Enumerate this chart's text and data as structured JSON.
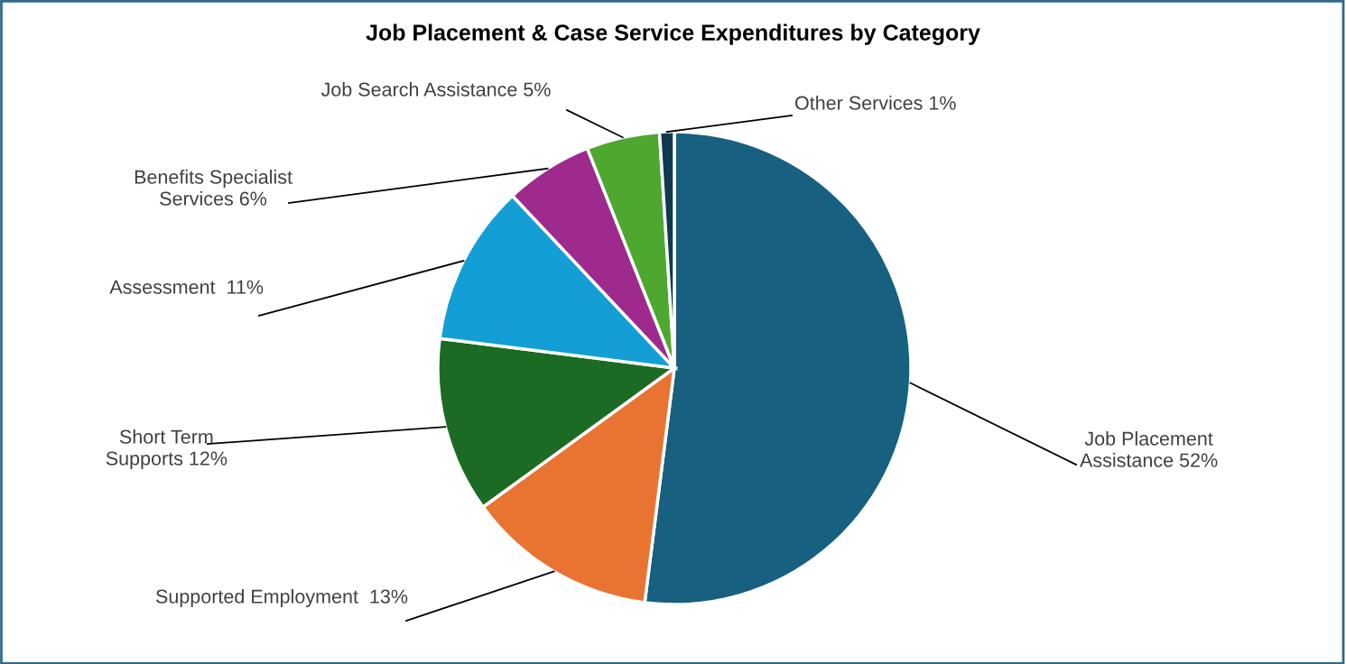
{
  "chart_data": {
    "type": "pie",
    "title": "Job Placement & Case Service Expenditures by Category",
    "categories": [
      "Job Placement\nAssistance",
      "Supported Employment ",
      "Short Term\nSupports",
      "Assessment ",
      "Benefits Specialist\nServices",
      "Job Search Assistance",
      "Other Services"
    ],
    "values": [
      52,
      13,
      12,
      11,
      6,
      5,
      1
    ],
    "value_labels": [
      "52%",
      "13%",
      "12%",
      "11%",
      "6%",
      "5%",
      "1%"
    ],
    "colors": [
      "#17607f",
      "#e97432",
      "#1c6b25",
      "#139fd6",
      "#9e2a8e",
      "#4ea72e",
      "#0f3a50"
    ]
  }
}
